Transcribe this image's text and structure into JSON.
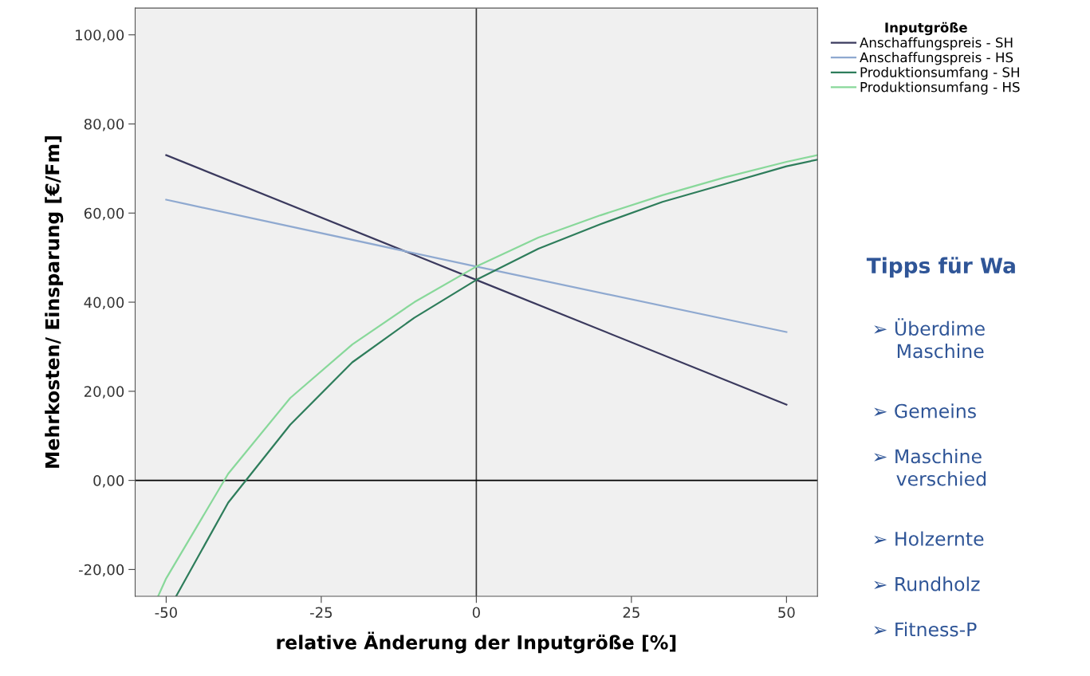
{
  "chart_data": {
    "type": "line",
    "xlabel": "relative Änderung der Inputgröße [%]",
    "ylabel": "Mehrkosten/ Einsparung [€/Fm]",
    "legend_title": "Inputgröße",
    "legend": "top right",
    "grid": false,
    "marker": "none",
    "line_style": "solid",
    "xlim": [
      -55,
      55
    ],
    "xticks": [
      -50,
      -25,
      0,
      25,
      50
    ],
    "ylim": [
      -26,
      106
    ],
    "yticks": [
      {
        "value": -20,
        "label": "-20,00"
      },
      {
        "value": 0,
        "label": "0,00"
      },
      {
        "value": 20,
        "label": "20,00"
      },
      {
        "value": 40,
        "label": "40,00"
      },
      {
        "value": 60,
        "label": "60,00"
      },
      {
        "value": 80,
        "label": "80,00"
      },
      {
        "value": 100,
        "label": "100,00"
      }
    ],
    "ref_lines": [
      {
        "axis": "x",
        "value": 0,
        "label": null,
        "color": "#3a3a3a"
      },
      {
        "axis": "y",
        "value": 0,
        "label": null,
        "color": "#000000"
      }
    ],
    "series": [
      {
        "name": "Anschaffungspreis - SH",
        "color": "#3b3a5e",
        "x": [
          -50,
          0,
          50
        ],
        "values": [
          73,
          45,
          17
        ]
      },
      {
        "name": "Anschaffungspreis - HS",
        "color": "#8fa9d0",
        "x": [
          -50,
          0,
          50
        ],
        "values": [
          63,
          48,
          33.3
        ]
      },
      {
        "name": "Produktionsumfang - SH",
        "color": "#2e7d5b",
        "x": [
          -48.4,
          -40,
          -30,
          -20,
          -10,
          0,
          10,
          20,
          30,
          40,
          50,
          55
        ],
        "values": [
          -26,
          -5,
          12.5,
          26.5,
          36.5,
          45,
          52,
          57.5,
          62.5,
          66.5,
          70.5,
          72
        ]
      },
      {
        "name": "Produktionsumfang - HS",
        "color": "#88d89a",
        "x": [
          -51.3,
          -50,
          -40,
          -30,
          -20,
          -10,
          0,
          10,
          20,
          30,
          40,
          50,
          55
        ],
        "values": [
          -26,
          -22,
          1.5,
          18.5,
          30.5,
          40,
          48,
          54.5,
          59.5,
          64,
          68,
          71.5,
          73
        ]
      }
    ],
    "annotations": [
      "Tipps für Wa",
      "➢ Überdime\n    Maschine",
      "➢ Gemeins",
      "➢ Maschine\n    verschied",
      "➢ Holzernte",
      "➢ Rundholz",
      "➢ Fitness-P"
    ]
  }
}
